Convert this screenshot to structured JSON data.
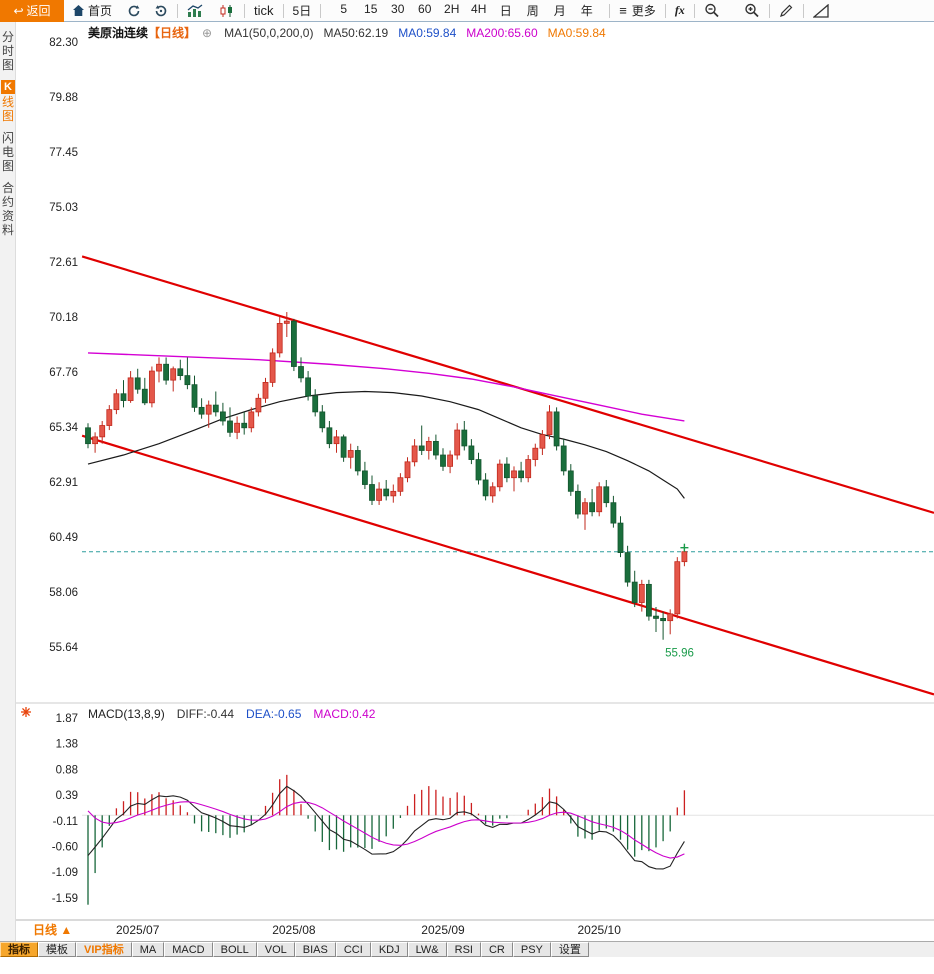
{
  "toolbar": {
    "back": "返回",
    "home": "首页",
    "tick": "tick",
    "five_day": "5日",
    "timeframes": [
      "5",
      "15",
      "30",
      "60",
      "2H",
      "4H",
      "日",
      "周",
      "月",
      "年"
    ],
    "more": "更多",
    "fx": "fx"
  },
  "sidebar": {
    "items": [
      {
        "name": "time-share-chart",
        "label": "分时图",
        "active": false
      },
      {
        "name": "kline-chart",
        "label": "K线图",
        "active": true
      },
      {
        "name": "lightning-chart",
        "label": "闪电图",
        "active": false
      },
      {
        "name": "contract-info",
        "label": "合约资料",
        "active": false
      }
    ]
  },
  "chart_header": {
    "symbol": "美原油连续",
    "period_tag": "【日线】",
    "settings_icon": "⊕",
    "ma_settings": "MA1(50,0,200,0)",
    "ma50": "MA50:62.19",
    "ma0_blue": "MA0:59.84",
    "ma200": "MA200:65.60",
    "ma0_orange": "MA0:59.84"
  },
  "macd_header": {
    "title": "MACD(13,8,9)",
    "diff": "DIFF:-0.44",
    "dea": "DEA:-0.65",
    "macd": "MACD:0.42"
  },
  "price_axis": [
    "82.30",
    "79.88",
    "77.45",
    "75.03",
    "72.61",
    "70.18",
    "67.76",
    "65.34",
    "62.91",
    "60.49",
    "58.06",
    "55.64"
  ],
  "macd_axis": [
    "1.87",
    "1.38",
    "0.88",
    "0.39",
    "-0.11",
    "-0.60",
    "-1.09",
    "-1.59"
  ],
  "x_axis": [
    {
      "label": "2025/07",
      "index": 7
    },
    {
      "label": "2025/08",
      "index": 29
    },
    {
      "label": "2025/09",
      "index": 50
    },
    {
      "label": "2025/10",
      "index": 72
    }
  ],
  "markers": {
    "low_label": "55.96",
    "current_price": 59.84
  },
  "bottom": {
    "period_label": "日线",
    "period_arrow": "▲",
    "tabs": [
      {
        "name": "indicators",
        "label": "指标",
        "style": "selected"
      },
      {
        "name": "templates",
        "label": "模板",
        "style": "normal"
      },
      {
        "name": "vip-indicators",
        "label": "VIP指标",
        "style": "vip"
      },
      {
        "name": "ma",
        "label": "MA",
        "style": "normal"
      },
      {
        "name": "macd",
        "label": "MACD",
        "style": "normal"
      },
      {
        "name": "boll",
        "label": "BOLL",
        "style": "normal"
      },
      {
        "name": "vol",
        "label": "VOL",
        "style": "normal"
      },
      {
        "name": "bias",
        "label": "BIAS",
        "style": "normal"
      },
      {
        "name": "cci",
        "label": "CCI",
        "style": "normal"
      },
      {
        "name": "kdj",
        "label": "KDJ",
        "style": "normal"
      },
      {
        "name": "lw",
        "label": "LW&",
        "style": "normal"
      },
      {
        "name": "rsi",
        "label": "RSI",
        "style": "normal"
      },
      {
        "name": "cr",
        "label": "CR",
        "style": "normal"
      },
      {
        "name": "psy",
        "label": "PSY",
        "style": "normal"
      },
      {
        "name": "settings",
        "label": "设置",
        "style": "normal"
      }
    ]
  },
  "colors": {
    "up_fill": "#e4574a",
    "up_stroke": "#c22a1e",
    "down_fill": "#1a6e3c",
    "down_stroke": "#14552f",
    "ma50": "#1a1a1a",
    "ma200": "#d400d4",
    "channel": "#e00000",
    "dashed_price": "#2f9e9e",
    "accent_orange": "#f07800",
    "header_orange": "#e8650f",
    "blue": "#1e50c8",
    "magenta": "#cc00cc",
    "green_label": "#1a9b4a",
    "axis_text": "#222222",
    "hist_pos": "#cc2020",
    "hist_neg": "#17673a"
  },
  "chart_data": {
    "type": "candlestick",
    "symbol": "美原油连续",
    "period": "日线",
    "visible_price_range": [
      55.64,
      82.3
    ],
    "candles_ohlc": [
      [
        65.3,
        65.5,
        64.4,
        64.6
      ],
      [
        64.6,
        65.1,
        64.2,
        64.9
      ],
      [
        64.9,
        65.6,
        64.6,
        65.4
      ],
      [
        65.4,
        66.3,
        65.2,
        66.1
      ],
      [
        66.1,
        67.0,
        65.9,
        66.8
      ],
      [
        66.8,
        67.4,
        66.2,
        66.5
      ],
      [
        66.5,
        67.8,
        66.4,
        67.5
      ],
      [
        67.5,
        67.9,
        66.8,
        67.0
      ],
      [
        67.0,
        67.5,
        66.3,
        66.4
      ],
      [
        66.4,
        68.0,
        66.2,
        67.8
      ],
      [
        67.8,
        68.4,
        67.3,
        68.1
      ],
      [
        68.1,
        68.4,
        67.2,
        67.4
      ],
      [
        67.4,
        68.0,
        66.9,
        67.9
      ],
      [
        67.9,
        68.3,
        67.4,
        67.6
      ],
      [
        67.6,
        68.4,
        67.0,
        67.2
      ],
      [
        67.2,
        67.6,
        66.0,
        66.2
      ],
      [
        66.2,
        66.6,
        65.7,
        65.9
      ],
      [
        65.9,
        66.5,
        65.3,
        66.3
      ],
      [
        66.3,
        66.9,
        65.8,
        66.0
      ],
      [
        66.0,
        66.4,
        65.4,
        65.6
      ],
      [
        65.6,
        66.2,
        64.9,
        65.1
      ],
      [
        65.1,
        65.8,
        64.8,
        65.5
      ],
      [
        65.5,
        66.0,
        65.0,
        65.3
      ],
      [
        65.3,
        66.2,
        65.1,
        66.0
      ],
      [
        66.0,
        66.8,
        65.8,
        66.6
      ],
      [
        66.6,
        67.5,
        66.4,
        67.3
      ],
      [
        67.3,
        68.8,
        67.1,
        68.6
      ],
      [
        68.6,
        70.2,
        68.4,
        69.9
      ],
      [
        69.9,
        70.4,
        69.3,
        70.0
      ],
      [
        70.0,
        70.1,
        67.8,
        68.0
      ],
      [
        68.0,
        68.4,
        67.3,
        67.5
      ],
      [
        67.5,
        67.8,
        66.5,
        66.7
      ],
      [
        66.7,
        67.0,
        65.8,
        66.0
      ],
      [
        66.0,
        66.3,
        65.1,
        65.3
      ],
      [
        65.3,
        65.6,
        64.4,
        64.6
      ],
      [
        64.6,
        65.2,
        64.2,
        64.9
      ],
      [
        64.9,
        65.0,
        63.8,
        64.0
      ],
      [
        64.0,
        64.6,
        63.5,
        64.3
      ],
      [
        64.3,
        64.5,
        63.2,
        63.4
      ],
      [
        63.4,
        63.8,
        62.6,
        62.8
      ],
      [
        62.8,
        63.2,
        61.9,
        62.1
      ],
      [
        62.1,
        62.9,
        61.9,
        62.6
      ],
      [
        62.6,
        63.0,
        62.1,
        62.3
      ],
      [
        62.3,
        62.8,
        62.0,
        62.5
      ],
      [
        62.5,
        63.3,
        62.3,
        63.1
      ],
      [
        63.1,
        64.0,
        62.9,
        63.8
      ],
      [
        63.8,
        64.8,
        63.6,
        64.5
      ],
      [
        64.5,
        65.4,
        64.1,
        64.3
      ],
      [
        64.3,
        64.9,
        63.9,
        64.7
      ],
      [
        64.7,
        65.0,
        63.9,
        64.1
      ],
      [
        64.1,
        64.4,
        63.4,
        63.6
      ],
      [
        63.6,
        64.3,
        63.3,
        64.1
      ],
      [
        64.1,
        65.5,
        63.9,
        65.2
      ],
      [
        65.2,
        65.6,
        64.3,
        64.5
      ],
      [
        64.5,
        64.8,
        63.7,
        63.9
      ],
      [
        63.9,
        64.2,
        62.8,
        63.0
      ],
      [
        63.0,
        63.3,
        62.1,
        62.3
      ],
      [
        62.3,
        62.9,
        62.0,
        62.7
      ],
      [
        62.7,
        63.9,
        62.5,
        63.7
      ],
      [
        63.7,
        64.0,
        62.9,
        63.1
      ],
      [
        63.1,
        63.6,
        62.5,
        63.4
      ],
      [
        63.4,
        63.8,
        62.9,
        63.1
      ],
      [
        63.1,
        64.1,
        62.9,
        63.9
      ],
      [
        63.9,
        64.6,
        63.6,
        64.4
      ],
      [
        64.4,
        65.2,
        64.1,
        65.0
      ],
      [
        65.0,
        66.3,
        64.8,
        66.0
      ],
      [
        66.0,
        66.2,
        64.3,
        64.5
      ],
      [
        64.5,
        64.8,
        63.2,
        63.4
      ],
      [
        63.4,
        63.7,
        62.3,
        62.5
      ],
      [
        62.5,
        62.8,
        61.3,
        61.5
      ],
      [
        61.5,
        62.2,
        60.8,
        62.0
      ],
      [
        62.0,
        62.6,
        61.4,
        61.6
      ],
      [
        61.6,
        62.9,
        61.4,
        62.7
      ],
      [
        62.7,
        63.0,
        61.8,
        62.0
      ],
      [
        62.0,
        62.3,
        60.9,
        61.1
      ],
      [
        61.1,
        61.4,
        59.6,
        59.8
      ],
      [
        59.8,
        60.1,
        58.3,
        58.5
      ],
      [
        58.5,
        59.0,
        57.4,
        57.6
      ],
      [
        57.6,
        58.6,
        57.2,
        58.4
      ],
      [
        58.4,
        58.6,
        56.8,
        57.0
      ],
      [
        57.0,
        57.4,
        56.3,
        56.9
      ],
      [
        56.9,
        57.2,
        55.96,
        56.8
      ],
      [
        56.8,
        57.3,
        56.2,
        57.1
      ],
      [
        57.1,
        59.6,
        56.9,
        59.4
      ],
      [
        59.4,
        60.1,
        59.2,
        59.84
      ]
    ],
    "ma50_points": [
      [
        0,
        63.7
      ],
      [
        5,
        64.1
      ],
      [
        10,
        64.6
      ],
      [
        15,
        65.2
      ],
      [
        19,
        65.7
      ],
      [
        23,
        66.1
      ],
      [
        27,
        66.45
      ],
      [
        31,
        66.7
      ],
      [
        35,
        66.85
      ],
      [
        39,
        66.9
      ],
      [
        43,
        66.85
      ],
      [
        47,
        66.7
      ],
      [
        51,
        66.45
      ],
      [
        55,
        66.1
      ],
      [
        58,
        65.7
      ],
      [
        61,
        65.3
      ],
      [
        64,
        65.0
      ],
      [
        67,
        64.8
      ],
      [
        70,
        64.55
      ],
      [
        73,
        64.25
      ],
      [
        76,
        63.85
      ],
      [
        79,
        63.4
      ],
      [
        81,
        63.0
      ],
      [
        83,
        62.6
      ],
      [
        84,
        62.19
      ]
    ],
    "ma200_points": [
      [
        0,
        68.6
      ],
      [
        12,
        68.45
      ],
      [
        24,
        68.3
      ],
      [
        34,
        68.1
      ],
      [
        42,
        67.9
      ],
      [
        48,
        67.7
      ],
      [
        54,
        67.45
      ],
      [
        60,
        67.1
      ],
      [
        66,
        66.7
      ],
      [
        72,
        66.3
      ],
      [
        78,
        65.9
      ],
      [
        84,
        65.6
      ]
    ],
    "channel_lines": [
      {
        "x1f": 0.072,
        "p1": 72.85,
        "x2f": 1.0,
        "p2": 61.55
      },
      {
        "x1f": 0.072,
        "p1": 64.95,
        "x2f": 1.0,
        "p2": 53.55
      }
    ],
    "current_price_line": 59.84,
    "low_point": {
      "index": 81,
      "price": 55.96
    },
    "macd": {
      "params": [
        13,
        8,
        9
      ],
      "diff": -0.44,
      "dea": -0.65,
      "hist": 0.42,
      "axis_range": [
        -1.59,
        1.87
      ]
    }
  }
}
